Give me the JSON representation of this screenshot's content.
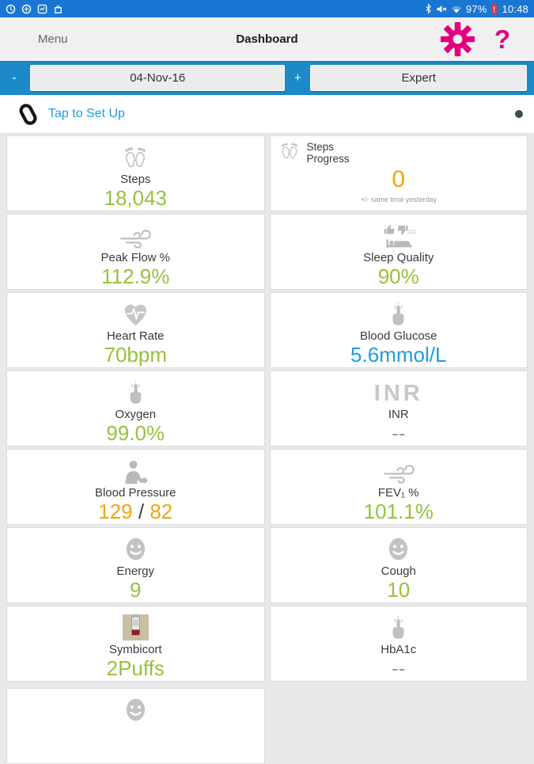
{
  "status_bar": {
    "battery_percent": "97%",
    "time": "10:48",
    "icons_left": [
      "app-notification-icon",
      "app-notification-icon",
      "app-notification-icon",
      "app-notification-icon"
    ],
    "icons_right": [
      "bluetooth-icon",
      "mute-icon",
      "wifi-icon",
      "battery-icon"
    ]
  },
  "header": {
    "menu_label": "Menu",
    "title": "Dashboard",
    "settings_icon": "gear-icon",
    "help_label": "?"
  },
  "date_bar": {
    "prev_label": "-",
    "date_label": "04-Nov-16",
    "next_label": "+",
    "mode_label": "Expert"
  },
  "setup_bar": {
    "icon": "fitness-band-icon",
    "label": "Tap to Set Up",
    "status_dot": "sync-status-dot"
  },
  "colors": {
    "green": "#97c23c",
    "orange": "#f2a50c",
    "blue": "#1e9de4",
    "gray": "#9b9b9b",
    "dark": "#3f3f3f",
    "accent_pink": "#e2007d",
    "statusbar_blue": "#1976d2",
    "datebar_blue": "#1b8ac6",
    "link_blue": "#1e9de9"
  },
  "tiles": [
    {
      "id": "steps",
      "icon": "footprints-icon",
      "label": "Steps",
      "value": "18,043",
      "color": "green"
    },
    {
      "id": "steps-progress",
      "icon": "footprints-icon",
      "label": "Steps Progress",
      "value": "0",
      "color": "orange",
      "note": "+/- same time yesterday",
      "variant": "corner"
    },
    {
      "id": "peak-flow",
      "icon": "wind-icon",
      "label": "Peak Flow %",
      "value": "112.9%",
      "color": "green"
    },
    {
      "id": "sleep-quality",
      "icon": "sleep-icon",
      "label": "Sleep Quality",
      "value": "90%",
      "color": "green"
    },
    {
      "id": "heart-rate",
      "icon": "heart-ecg-icon",
      "label": "Heart Rate",
      "value": "70bpm",
      "color": "green"
    },
    {
      "id": "blood-glucose",
      "icon": "finger-prick-icon",
      "label": "Blood Glucose",
      "value": "5.6mmol/L",
      "color": "blue"
    },
    {
      "id": "oxygen",
      "icon": "finger-prick-icon",
      "label": "Oxygen",
      "value": "99.0%",
      "color": "green"
    },
    {
      "id": "inr",
      "icon": "inr-text-icon",
      "label": "INR",
      "value": "--",
      "color": "gray"
    },
    {
      "id": "blood-pressure",
      "icon": "person-icon",
      "label": "Blood Pressure",
      "value_parts": [
        {
          "text": "129",
          "color": "orange"
        },
        {
          "text": " / ",
          "color": "dark"
        },
        {
          "text": "82",
          "color": "orange"
        }
      ]
    },
    {
      "id": "fev1",
      "icon": "wind-icon",
      "label": "FEV₁ %",
      "value": "101.1%",
      "color": "green"
    },
    {
      "id": "energy",
      "icon": "smiley-icon",
      "label": "Energy",
      "value": "9",
      "color": "green"
    },
    {
      "id": "cough",
      "icon": "smiley-icon",
      "label": "Cough",
      "value": "10",
      "color": "green"
    },
    {
      "id": "symbicort",
      "icon": "inhaler-icon",
      "label": "Symbicort",
      "value": "2Puffs",
      "color": "green"
    },
    {
      "id": "hba1c",
      "icon": "finger-prick-icon",
      "label": "HbA1c",
      "value": "--",
      "color": "gray"
    },
    {
      "id": "extra-partial",
      "icon": "smiley-icon",
      "label": "",
      "value": "",
      "color": "gray",
      "variant": "partial"
    }
  ]
}
